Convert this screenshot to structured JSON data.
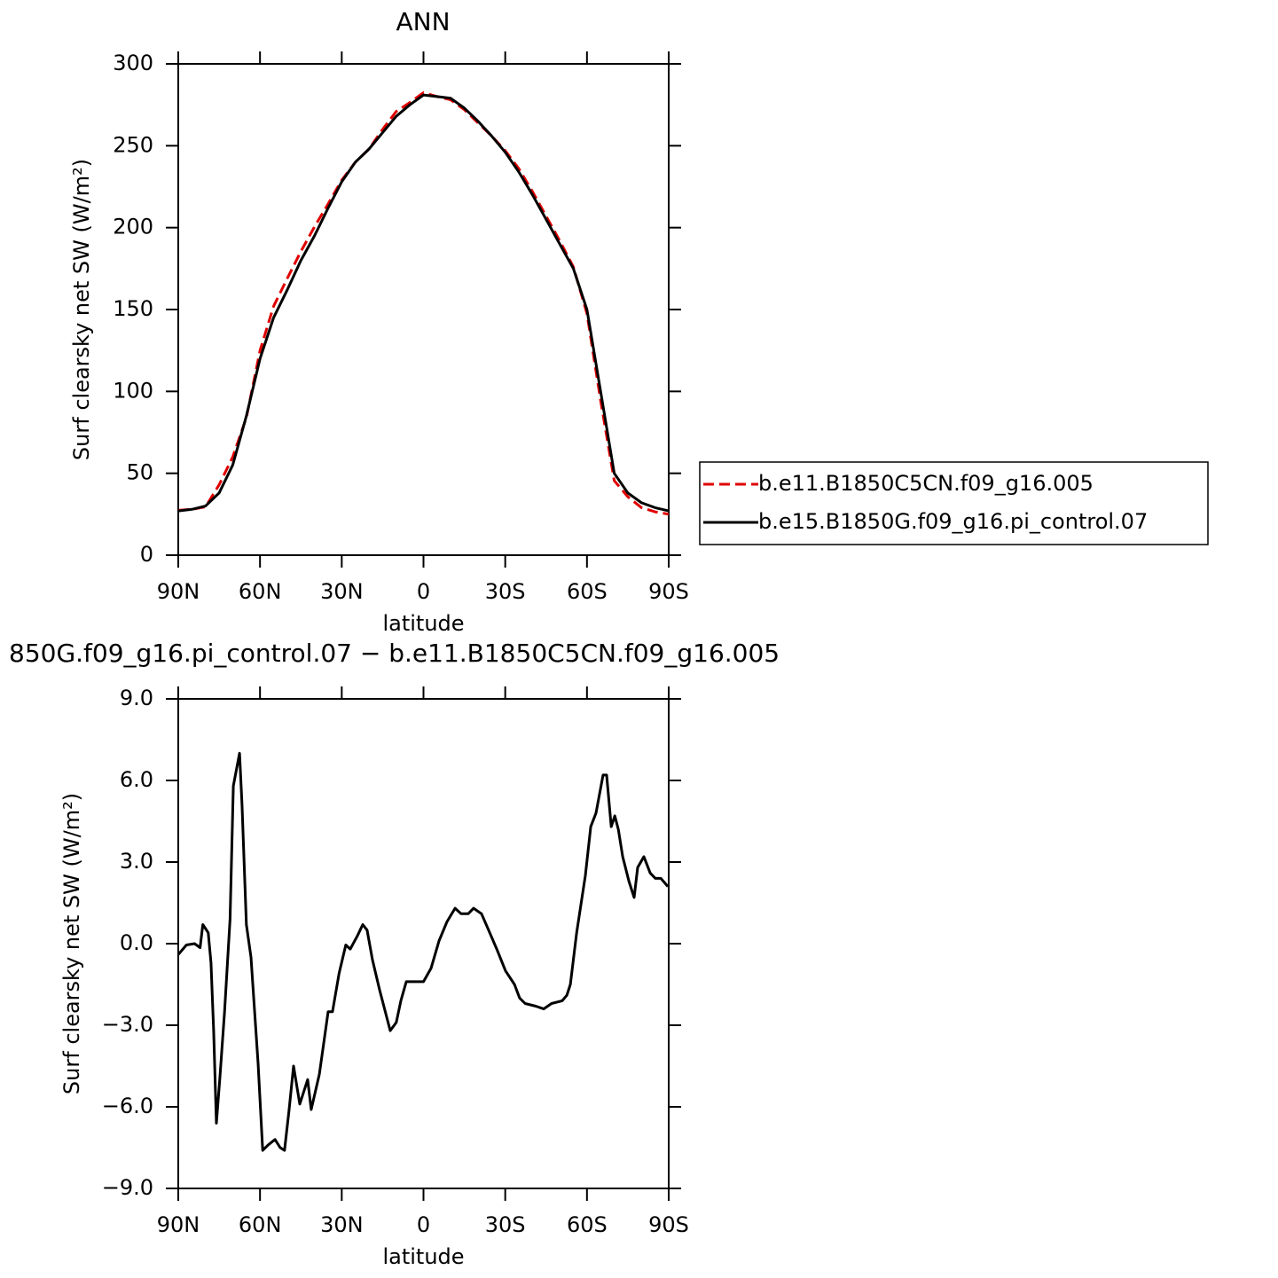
{
  "chart_data": [
    {
      "type": "line",
      "title": "ANN",
      "xlabel": "latitude",
      "ylabel": "Surf clearsky net SW (W/m²)",
      "x": [
        90,
        85,
        80,
        75,
        70,
        65,
        60,
        55,
        50,
        45,
        40,
        35,
        30,
        25,
        20,
        15,
        10,
        5,
        0,
        -5,
        -10,
        -15,
        -20,
        -25,
        -30,
        -35,
        -40,
        -45,
        -50,
        -55,
        -60,
        -65,
        -70,
        -75,
        -80,
        -85,
        -90
      ],
      "xlim": [
        90,
        -90
      ],
      "xticks": [
        {
          "value": 90,
          "label": "90N"
        },
        {
          "value": 60,
          "label": "60N"
        },
        {
          "value": 30,
          "label": "30N"
        },
        0,
        {
          "value": -30,
          "label": "30S"
        },
        {
          "value": -60,
          "label": "60S"
        },
        {
          "value": -90,
          "label": "90S"
        }
      ],
      "ylim": [
        0,
        300
      ],
      "yticks": [
        0,
        50,
        100,
        150,
        200,
        250,
        300
      ],
      "legend": "right",
      "series": [
        {
          "name": "b.e11.B1850C5CN.f09_g16.005",
          "color": "#e00000",
          "dash": true,
          "values": [
            27.4,
            28,
            29.5,
            43,
            60,
            84,
            125,
            152,
            169,
            185.5,
            200.5,
            214.5,
            229,
            240,
            248,
            260,
            271,
            276.4,
            282.4,
            280,
            278,
            272,
            264,
            256,
            247,
            236,
            222,
            207,
            192,
            176,
            147.5,
            94.5,
            45.5,
            35.7,
            29,
            26.5,
            25
          ]
        },
        {
          "name": "b.e15.B1850G.f09_g16.pi_control.07",
          "color": "#000000",
          "dash": false,
          "values": [
            27,
            28,
            30,
            38,
            55,
            85,
            120,
            145,
            162,
            180,
            195,
            212,
            228,
            240,
            248,
            258,
            268,
            275,
            281,
            280,
            279,
            273,
            265,
            256,
            246,
            234,
            220,
            205,
            190,
            175,
            150,
            100,
            50,
            38,
            32,
            29,
            27
          ]
        }
      ]
    },
    {
      "type": "line",
      "title": "850G.f09_g16.pi_control.07 − b.e11.B1850C5CN.f09_g16.005",
      "xlabel": "latitude",
      "ylabel": "Surf clearsky net SW (W/m²)",
      "x": [
        90,
        87,
        84,
        82,
        81,
        79,
        78,
        77,
        76,
        74.7,
        73,
        71,
        69.8,
        67.5,
        66.6,
        65,
        63.3,
        60.7,
        59,
        57,
        54.5,
        52.6,
        51,
        49.3,
        47.7,
        45.4,
        42.5,
        41.2,
        38.2,
        35,
        33.4,
        31,
        28.5,
        26.9,
        24.2,
        22.3,
        20.7,
        18.7,
        16.1,
        12.2,
        10,
        8.3,
        6.3,
        3.7,
        0,
        -2.8,
        -5.7,
        -8.6,
        -11.6,
        -13.8,
        -16.4,
        -18.4,
        -21.3,
        -23.9,
        -26.9,
        -30.1,
        -33.4,
        -35.3,
        -37.3,
        -41.2,
        -44.1,
        -47,
        -50.9,
        -52.6,
        -53.9,
        -56.2,
        -59.4,
        -61.4,
        -63.3,
        -65.9,
        -67.2,
        -68.9,
        -70.2,
        -71.5,
        -73.1,
        -75.4,
        -77.3,
        -78.6,
        -80.9,
        -83.2,
        -85.1,
        -87.1,
        -89.7
      ],
      "values": [
        -0.4,
        -0.05,
        0,
        -0.15,
        0.7,
        0.4,
        -0.7,
        -3.2,
        -6.6,
        -4.9,
        -2.5,
        0.9,
        5.8,
        7.0,
        5.1,
        0.7,
        -0.5,
        -4.4,
        -7.6,
        -7.4,
        -7.2,
        -7.5,
        -7.6,
        -6.1,
        -4.5,
        -5.9,
        -5.0,
        -6.1,
        -4.8,
        -2.5,
        -2.5,
        -1.1,
        -0.05,
        -0.2,
        0.3,
        0.7,
        0.5,
        -0.6,
        -1.7,
        -3.2,
        -2.9,
        -2.1,
        -1.4,
        -1.4,
        -1.4,
        -0.9,
        0.1,
        0.8,
        1.3,
        1.1,
        1.1,
        1.3,
        1.1,
        0.5,
        -0.2,
        -1.0,
        -1.5,
        -2.0,
        -2.2,
        -2.3,
        -2.4,
        -2.2,
        -2.1,
        -1.9,
        -1.5,
        0.4,
        2.5,
        4.3,
        4.8,
        6.2,
        6.2,
        4.3,
        4.7,
        4.2,
        3.2,
        2.3,
        1.7,
        2.8,
        3.2,
        2.6,
        2.4,
        2.4,
        2.1
      ],
      "color": "#000000",
      "xlim": [
        90,
        -90
      ],
      "xticks": [
        {
          "value": 90,
          "label": "90N"
        },
        {
          "value": 60,
          "label": "60N"
        },
        {
          "value": 30,
          "label": "30N"
        },
        0,
        {
          "value": -30,
          "label": "30S"
        },
        {
          "value": -60,
          "label": "60S"
        },
        {
          "value": -90,
          "label": "90S"
        }
      ],
      "ylim": [
        -9,
        9
      ],
      "yticks": [
        {
          "value": -9,
          "label": "−9.0"
        },
        {
          "value": -6,
          "label": "−6.0"
        },
        {
          "value": -3,
          "label": "−3.0"
        },
        {
          "value": 0,
          "label": "0.0"
        },
        {
          "value": 3,
          "label": "3.0"
        },
        {
          "value": 6,
          "label": "6.0"
        },
        {
          "value": 9,
          "label": "9.0"
        }
      ]
    }
  ]
}
